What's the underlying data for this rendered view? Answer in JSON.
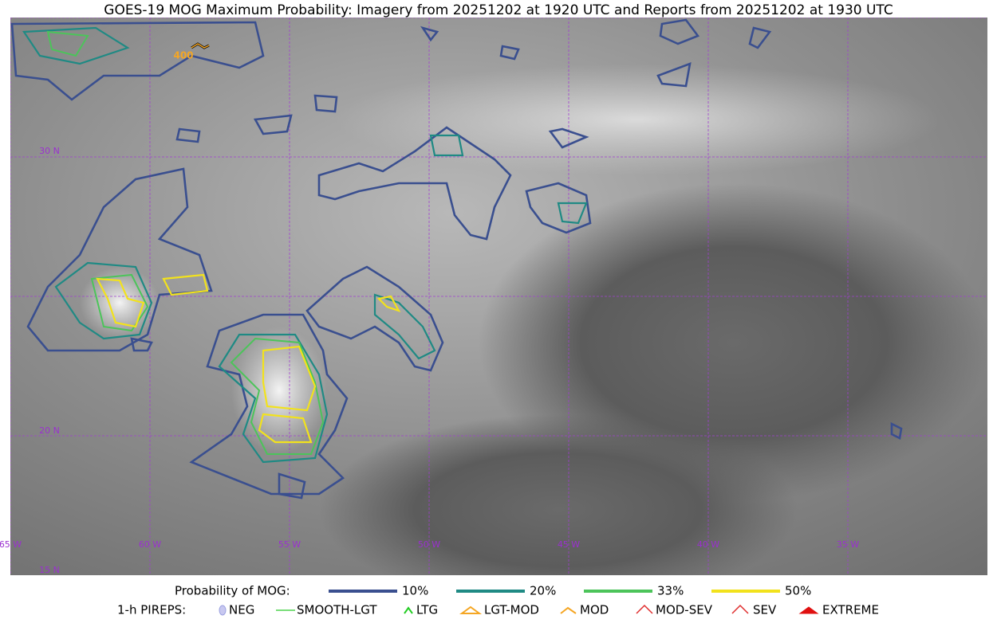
{
  "map": {
    "title": "GOES-19 MOG Maximum Probability: Imagery from 20251202 at 1920 UTC and Reports from 20251202 at 1930 UTC",
    "lat_labels": [
      "30 N",
      "20 N",
      "15 N"
    ],
    "lon_labels": [
      "65 W",
      "60 W",
      "55 W",
      "50 W",
      "45 W",
      "40 W",
      "35 W"
    ],
    "flight_level_label": "400"
  },
  "legend": {
    "title": "Probability of MOG:",
    "items": [
      {
        "label": "10%",
        "color": "#3a4f8f"
      },
      {
        "label": "20%",
        "color": "#1f8a84"
      },
      {
        "label": "33%",
        "color": "#4cc45a"
      },
      {
        "label": "50%",
        "color": "#f2e21c"
      }
    ]
  },
  "pireps": {
    "title": "1-h PIREPS:",
    "items": [
      "NEG",
      "SMOOTH-LGT",
      "LTG",
      "LGT-MOD",
      "MOD",
      "MOD-SEV",
      "SEV",
      "EXTREME"
    ]
  }
}
